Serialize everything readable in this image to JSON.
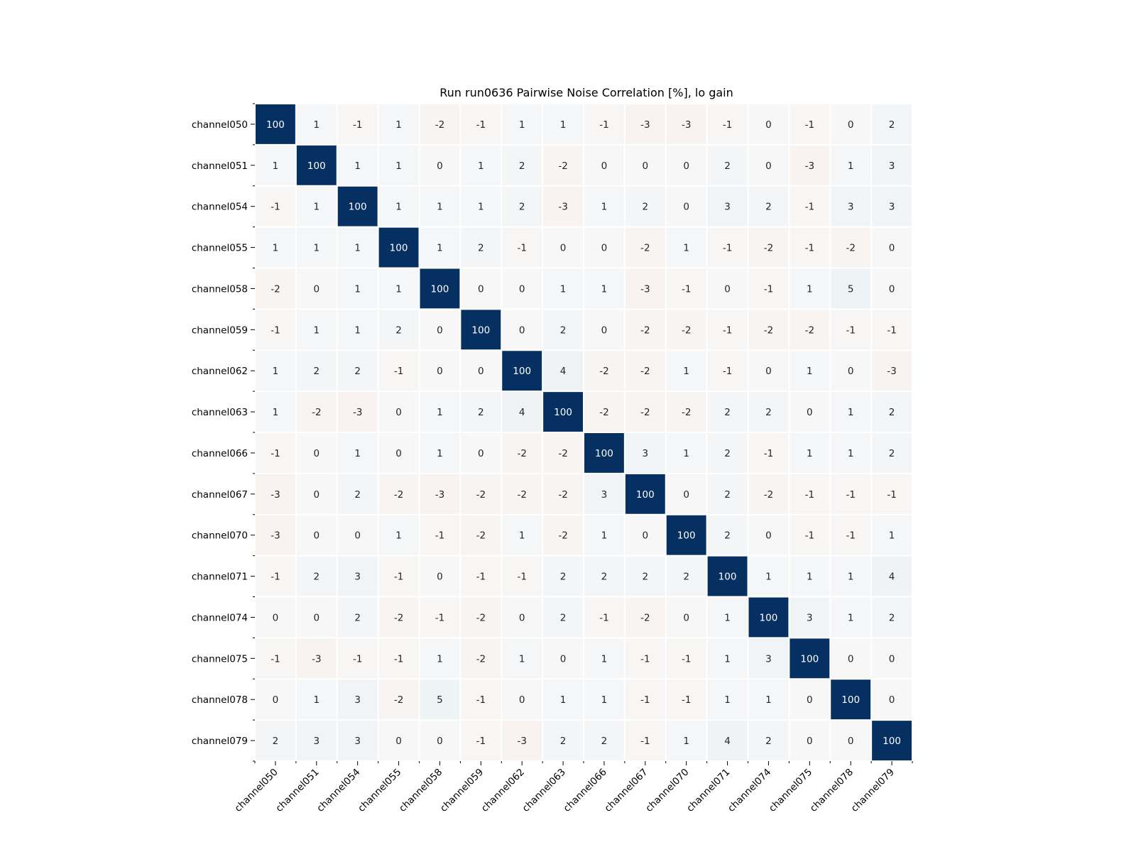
{
  "chart_data": {
    "type": "heatmap",
    "title": "Run run0636 Pairwise Noise Correlation [%], lo gain",
    "xlabel": "",
    "ylabel": "",
    "labels": [
      "channel050",
      "channel051",
      "channel054",
      "channel055",
      "channel058",
      "channel059",
      "channel062",
      "channel063",
      "channel066",
      "channel067",
      "channel070",
      "channel071",
      "channel074",
      "channel075",
      "channel078",
      "channel079"
    ],
    "values": [
      [
        100,
        1,
        -1,
        1,
        -2,
        -1,
        1,
        1,
        -1,
        -3,
        -3,
        -1,
        0,
        -1,
        0,
        2
      ],
      [
        1,
        100,
        1,
        1,
        0,
        1,
        2,
        -2,
        0,
        0,
        0,
        2,
        0,
        -3,
        1,
        3
      ],
      [
        -1,
        1,
        100,
        1,
        1,
        1,
        2,
        -3,
        1,
        2,
        0,
        3,
        2,
        -1,
        3,
        3
      ],
      [
        1,
        1,
        1,
        100,
        1,
        2,
        -1,
        0,
        0,
        -2,
        1,
        -1,
        -2,
        -1,
        -2,
        0
      ],
      [
        -2,
        0,
        1,
        1,
        100,
        0,
        0,
        1,
        1,
        -3,
        -1,
        0,
        -1,
        1,
        5,
        0
      ],
      [
        -1,
        1,
        1,
        2,
        0,
        100,
        0,
        2,
        0,
        -2,
        -2,
        -1,
        -2,
        -2,
        -1,
        -1
      ],
      [
        1,
        2,
        2,
        -1,
        0,
        0,
        100,
        4,
        -2,
        -2,
        1,
        -1,
        0,
        1,
        0,
        -3
      ],
      [
        1,
        -2,
        -3,
        0,
        1,
        2,
        4,
        100,
        -2,
        -2,
        -2,
        2,
        2,
        0,
        1,
        2
      ],
      [
        -1,
        0,
        1,
        0,
        1,
        0,
        -2,
        -2,
        100,
        3,
        1,
        2,
        -1,
        1,
        1,
        2
      ],
      [
        -3,
        0,
        2,
        -2,
        -3,
        -2,
        -2,
        -2,
        3,
        100,
        0,
        2,
        -2,
        -1,
        -1,
        -1
      ],
      [
        -3,
        0,
        0,
        1,
        -1,
        -2,
        1,
        -2,
        1,
        0,
        100,
        2,
        0,
        -1,
        -1,
        1
      ],
      [
        -1,
        2,
        3,
        -1,
        0,
        -1,
        -1,
        2,
        2,
        2,
        2,
        100,
        1,
        1,
        1,
        4
      ],
      [
        0,
        0,
        2,
        -2,
        -1,
        -2,
        0,
        2,
        -1,
        -2,
        0,
        1,
        100,
        3,
        1,
        2
      ],
      [
        -1,
        -3,
        -1,
        -1,
        1,
        -2,
        1,
        0,
        1,
        -1,
        -1,
        1,
        3,
        100,
        0,
        0
      ],
      [
        0,
        1,
        3,
        -2,
        5,
        -1,
        0,
        1,
        1,
        -1,
        -1,
        1,
        1,
        0,
        100,
        0
      ],
      [
        2,
        3,
        3,
        0,
        0,
        -1,
        -3,
        2,
        2,
        -1,
        1,
        4,
        2,
        0,
        0,
        100
      ]
    ],
    "colormap": "RdBu (red negative, blue positive)",
    "vmin": -100,
    "vmax": 100,
    "grid": false,
    "colors": {
      "high": "#053061",
      "neutral": "#f7f7f7",
      "negative": "#f4a582",
      "cell_border": "#ffffff"
    }
  }
}
